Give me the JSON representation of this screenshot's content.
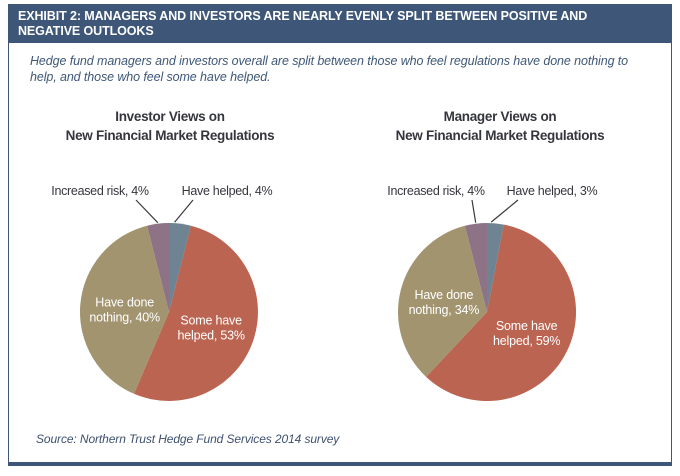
{
  "header": {
    "title": "EXHIBIT 2: MANAGERS AND INVESTORS ARE NEARLY EVENLY SPLIT BETWEEN POSITIVE AND NEGATIVE OUTLOOKS"
  },
  "subtitle": "Hedge fund managers and investors overall are split between those who feel regulations have done nothing to help, and those who feel some have helped.",
  "source": "Source: Northern Trust Hedge Fund Services 2014 survey",
  "colors": {
    "navy": "#3e5778",
    "title_text": "#35363d",
    "slice_have_helped": "#6e8492",
    "slice_some_have_helped": "#ba6451",
    "slice_have_done_nothing": "#a39470",
    "slice_increased_risk": "#8e7386"
  },
  "chart_data": [
    {
      "type": "pie",
      "title_lines": [
        "Investor Views on",
        "New Financial Market Regulations"
      ],
      "start_angle_deg": 0,
      "direction": "clockwise",
      "legend": "none",
      "slices": [
        {
          "name": "Have helped",
          "value": 4,
          "color": "#6e8492",
          "placement": "callout-right",
          "label": "Have helped, 4%",
          "label_x": 217
        },
        {
          "name": "Some have helped",
          "value": 53,
          "color": "#ba6451",
          "placement": "inside",
          "label_lines": [
            "Some have",
            "helped, 53%"
          ]
        },
        {
          "name": "Have done nothing",
          "value": 40,
          "color": "#a39470",
          "placement": "inside",
          "label_lines": [
            "Have done",
            "nothing, 40%"
          ]
        },
        {
          "name": "Increased risk",
          "value": 4,
          "color": "#8e7386",
          "placement": "callout-left",
          "label": "Increased risk, 4%",
          "label_x": 90
        }
      ]
    },
    {
      "type": "pie",
      "title_lines": [
        "Manager Views on",
        "New Financial Market Regulations"
      ],
      "start_angle_deg": 0,
      "direction": "clockwise",
      "legend": "none",
      "slices": [
        {
          "name": "Have helped",
          "value": 3,
          "color": "#6e8492",
          "placement": "callout-right",
          "label": "Have helped, 3%",
          "label_x": 212
        },
        {
          "name": "Some have helped",
          "value": 59,
          "color": "#ba6451",
          "placement": "inside",
          "label_lines": [
            "Some have",
            "helped, 59%"
          ]
        },
        {
          "name": "Have done nothing",
          "value": 34,
          "color": "#a39470",
          "placement": "inside",
          "label_lines": [
            "Have done",
            "nothing, 34%"
          ]
        },
        {
          "name": "Increased risk",
          "value": 4,
          "color": "#8e7386",
          "placement": "callout-left",
          "label": "Increased risk, 4%",
          "label_x": 96
        }
      ]
    }
  ]
}
